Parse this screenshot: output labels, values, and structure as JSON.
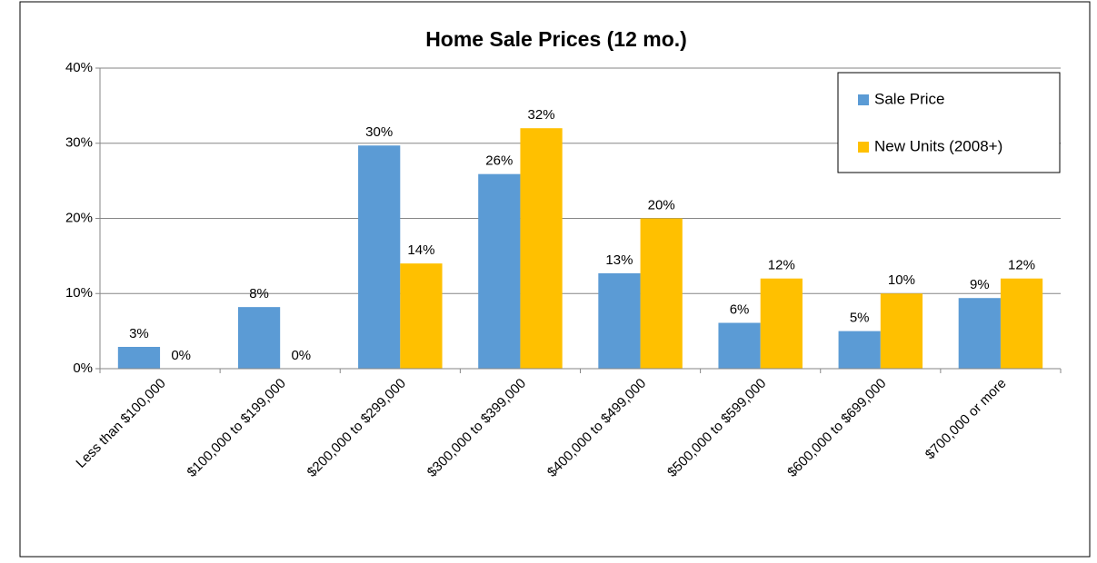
{
  "chart_data": {
    "type": "bar",
    "title": "Home Sale Prices (12 mo.)",
    "categories": [
      "Less than $100,000",
      "$100,000 to $199,000",
      "$200,000 to $299,000",
      "$300,000 to $399,000",
      "$400,000 to $499,000",
      "$500,000 to $599,000",
      "$600,000 to $699,000",
      "$700,000 or more"
    ],
    "series": [
      {
        "name": "Sale Price",
        "color": "#5b9bd5",
        "values": [
          2.9,
          8.2,
          29.7,
          25.9,
          12.7,
          6.1,
          5.0,
          9.4
        ],
        "value_labels": [
          "3%",
          "8%",
          "30%",
          "26%",
          "13%",
          "6%",
          "5%",
          "9%"
        ]
      },
      {
        "name": "New Units (2008+)",
        "color": "#ffc000",
        "values": [
          0,
          0,
          14,
          32,
          20,
          12,
          10,
          12
        ],
        "value_labels": [
          "0%",
          "0%",
          "14%",
          "32%",
          "20%",
          "12%",
          "10%",
          "12%"
        ]
      }
    ],
    "ylim": [
      0,
      40
    ],
    "yticks": [
      {
        "value": 0,
        "label": "0%"
      },
      {
        "value": 10,
        "label": "10%"
      },
      {
        "value": 20,
        "label": "20%"
      },
      {
        "value": 30,
        "label": "30%"
      },
      {
        "value": 40,
        "label": "40%"
      }
    ],
    "grid": true,
    "legend": "top-right"
  }
}
